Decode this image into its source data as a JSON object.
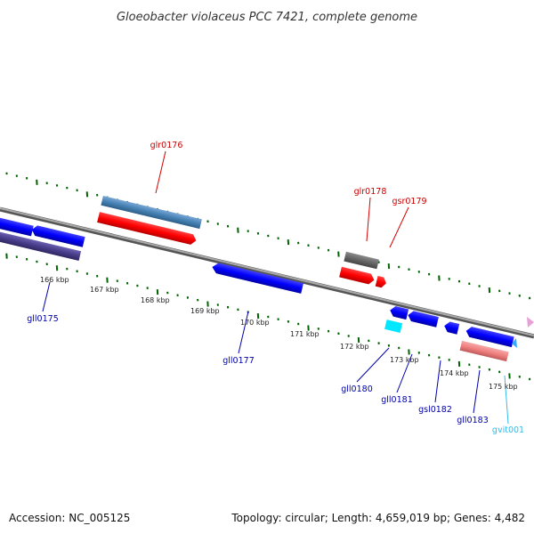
{
  "title": "Gloeobacter violaceus PCC 7421, complete genome",
  "footer": {
    "accession": "Accession: NC_005125",
    "topology": "Topology: circular; Length: 4,659,019 bp; Genes: 4,482"
  },
  "scale_labels": [
    "166 kbp",
    "167 kbp",
    "168 kbp",
    "169 kbp",
    "170 kbp",
    "171 kbp",
    "172 kbp",
    "173 kbp",
    "174 kbp",
    "175 kbp"
  ],
  "genes": [
    {
      "id": "glr0176",
      "label": "glr0176",
      "strand": "+",
      "color": "#d40000"
    },
    {
      "id": "glr0178",
      "label": "glr0178",
      "strand": "+",
      "color": "#d40000"
    },
    {
      "id": "gsr0179",
      "label": "gsr0179",
      "strand": "+",
      "color": "#d40000"
    },
    {
      "id": "gll0175",
      "label": "gll0175",
      "strand": "-",
      "color": "#0000aa"
    },
    {
      "id": "gll0177",
      "label": "gll0177",
      "strand": "-",
      "color": "#0000aa"
    },
    {
      "id": "gll0180",
      "label": "gll0180",
      "strand": "-",
      "color": "#0000aa"
    },
    {
      "id": "gll0181",
      "label": "gll0181",
      "strand": "-",
      "color": "#0000aa"
    },
    {
      "id": "gsl0182",
      "label": "gsl0182",
      "strand": "-",
      "color": "#0000aa"
    },
    {
      "id": "gll0183",
      "label": "gll0183",
      "strand": "-",
      "color": "#0000aa"
    },
    {
      "id": "gvit001",
      "label": "gvit001",
      "strand": "-",
      "color": "#33bbee"
    }
  ],
  "colors": {
    "forward_cds": "#ff0000",
    "reverse_cds": "#0000ff",
    "forward_feature": "#4682b4",
    "reverse_feature": "#483d8b",
    "backbone": "#888888",
    "tick": "#006400",
    "pseudo": "#f08080"
  }
}
